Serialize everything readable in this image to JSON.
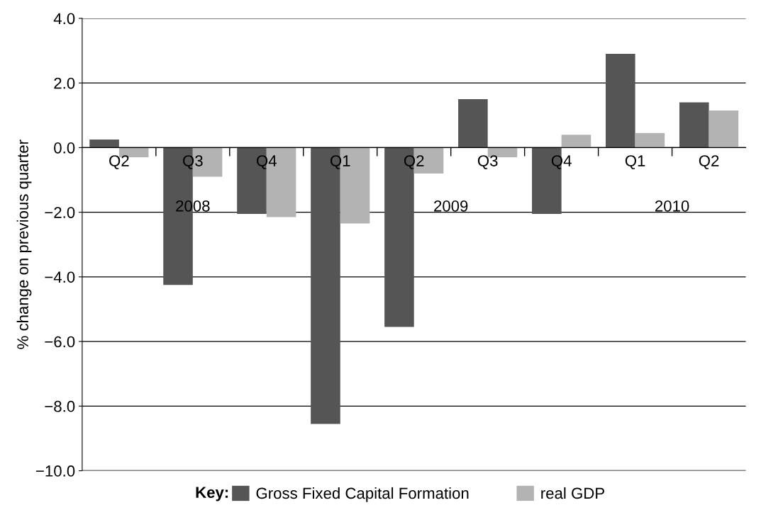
{
  "chart_data": {
    "type": "bar",
    "categories": [
      "Q2",
      "Q3",
      "Q4",
      "Q1",
      "Q2",
      "Q3",
      "Q4",
      "Q1",
      "Q2"
    ],
    "series": [
      {
        "name": "Gross Fixed Capital Formation",
        "color": "#555555",
        "values": [
          0.25,
          -4.25,
          -2.05,
          -8.55,
          -5.55,
          1.5,
          -2.05,
          2.9,
          1.4
        ]
      },
      {
        "name": "real GDP",
        "color": "#b3b3b3",
        "values": [
          -0.3,
          -0.9,
          -2.15,
          -2.35,
          -0.8,
          -0.3,
          0.4,
          0.45,
          1.15
        ]
      }
    ],
    "ylabel": "% change on previous quarter",
    "ylim": [
      -10.0,
      4.0
    ],
    "yticks": [
      {
        "value": -10,
        "label": "−10.0"
      },
      {
        "value": -8,
        "label": "−8.0"
      },
      {
        "value": -6,
        "label": "−6.0"
      },
      {
        "value": -4,
        "label": "−4.0"
      },
      {
        "value": -2,
        "label": "−2.0"
      },
      {
        "value": 0,
        "label": "0.0"
      },
      {
        "value": 2,
        "label": "2.0"
      },
      {
        "value": 4,
        "label": "4.0"
      }
    ],
    "grid": "y",
    "legend": "bottom",
    "legend_title": "Key:",
    "annotations": [
      "2008",
      "2009",
      "2010"
    ]
  }
}
